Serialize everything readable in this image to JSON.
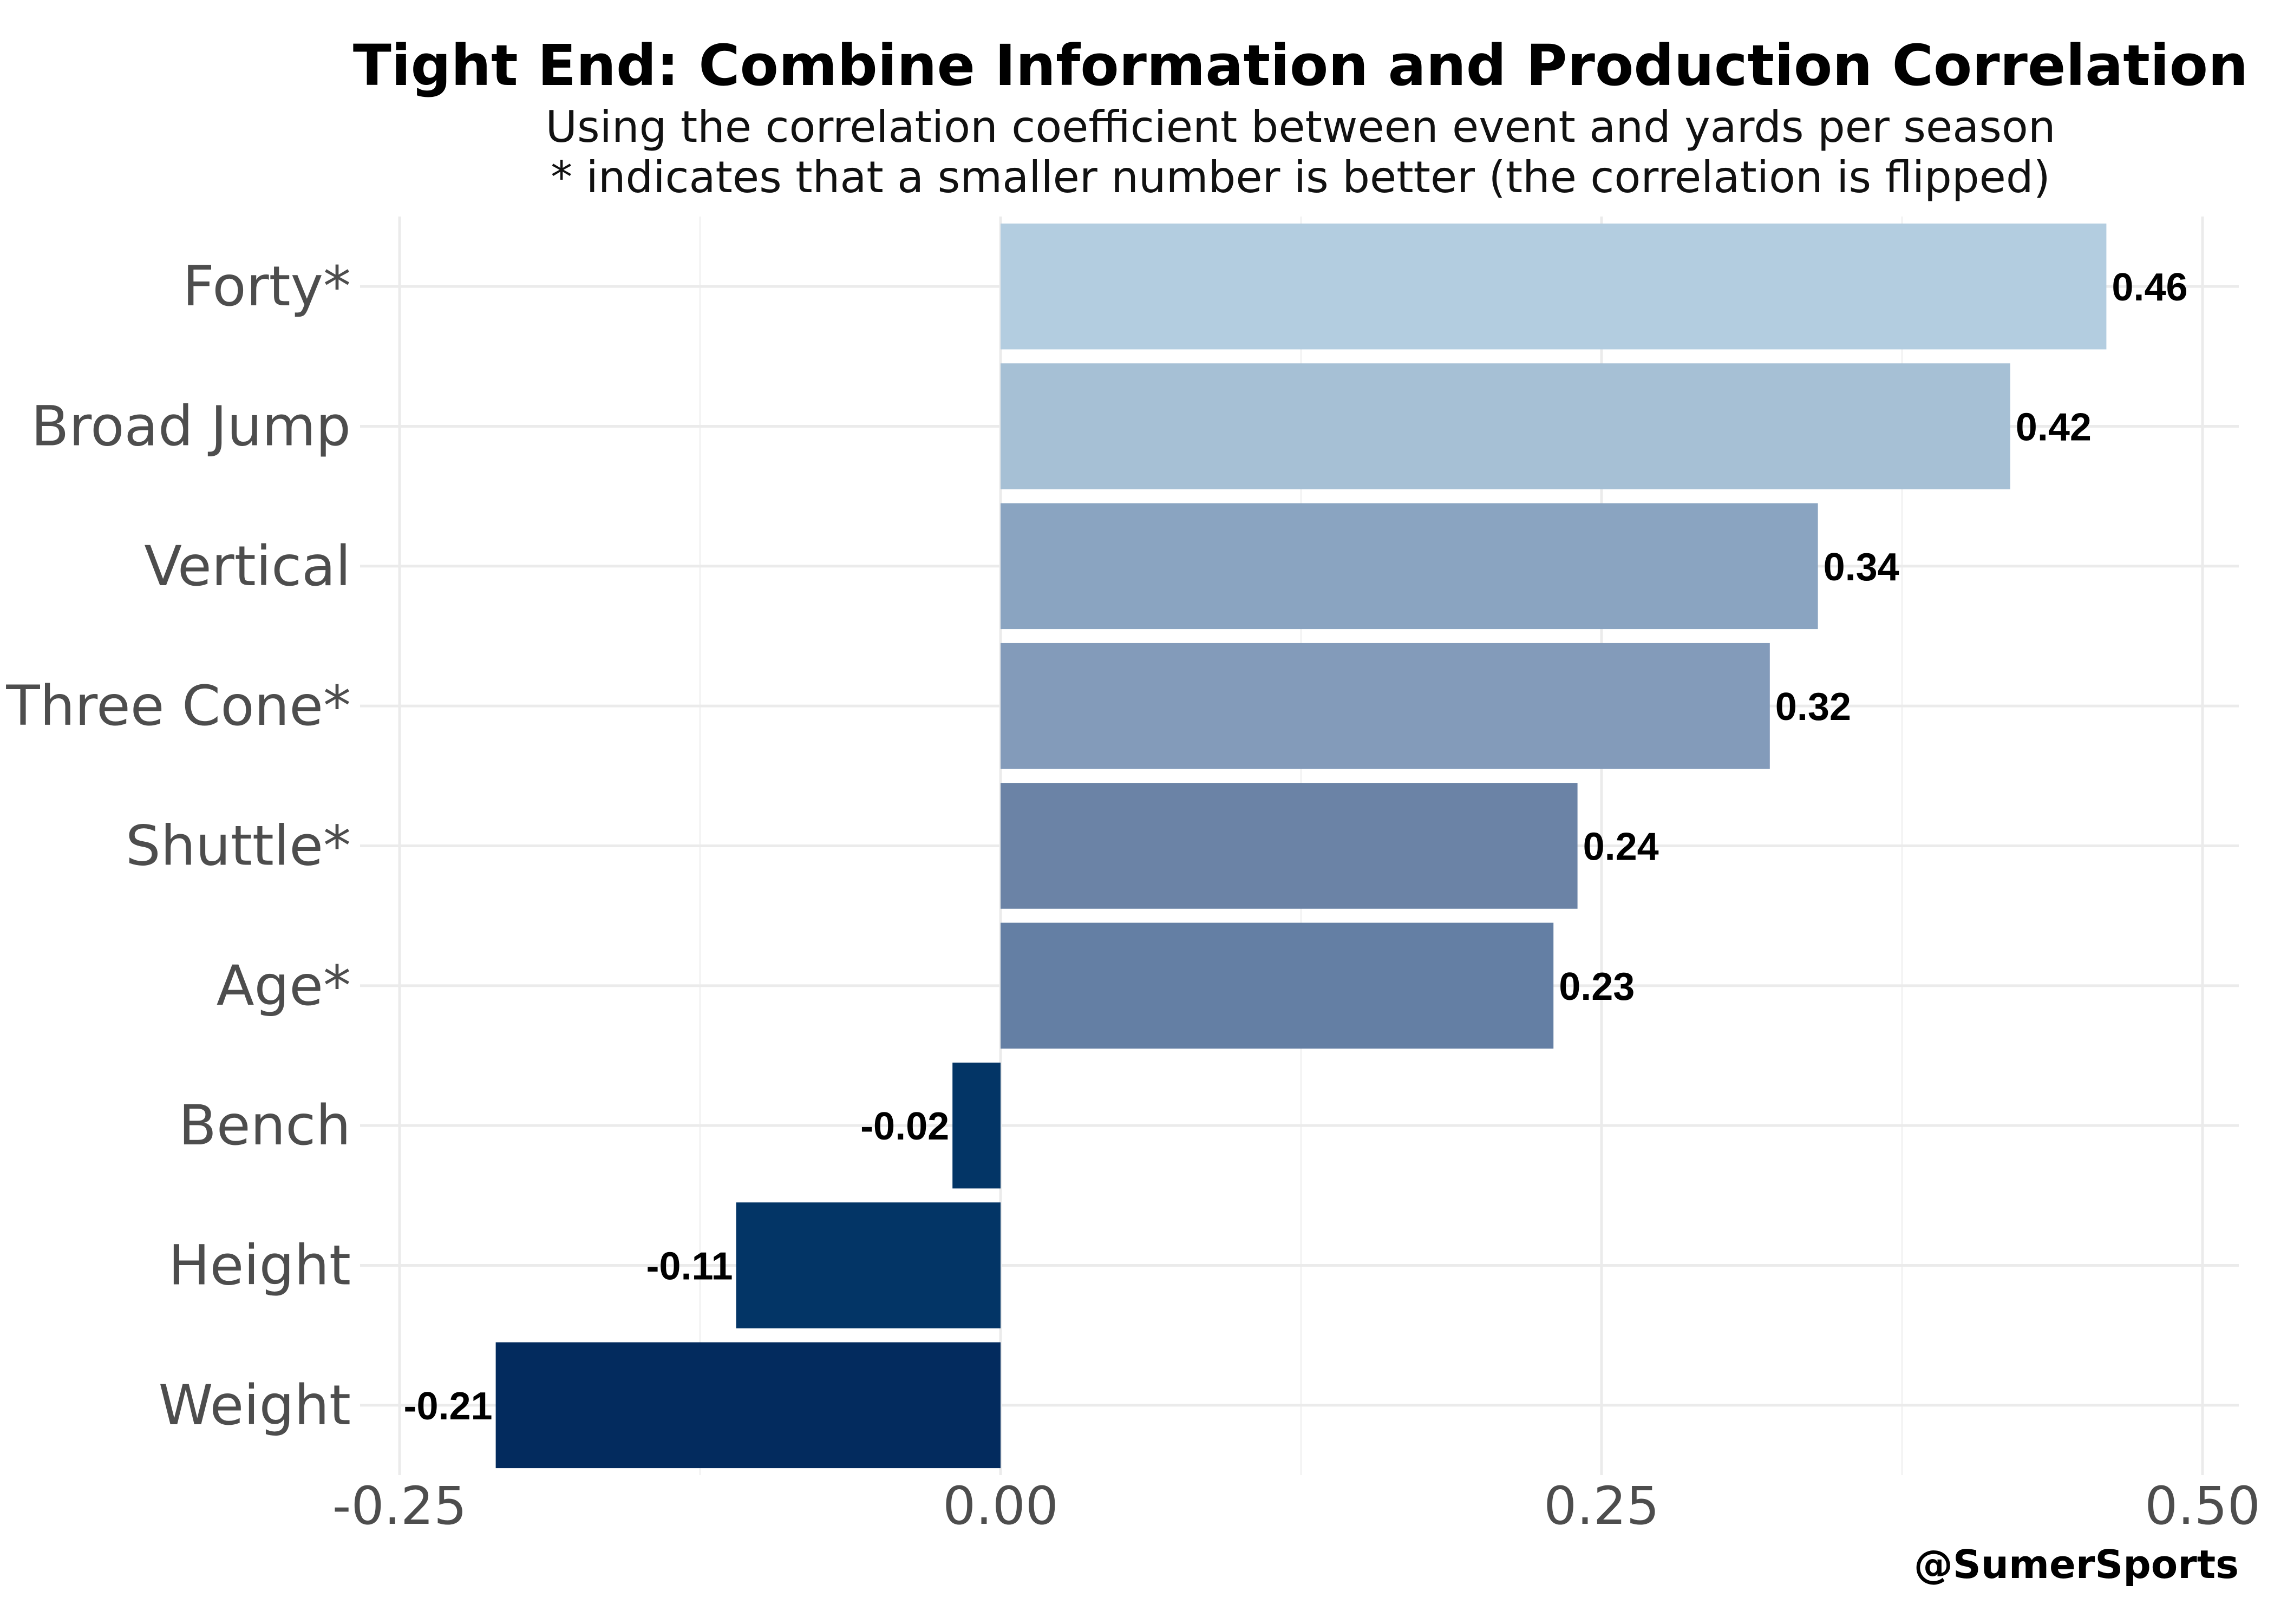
{
  "chart_data": {
    "type": "bar",
    "orientation": "horizontal",
    "title": "Tight End: Combine Information and Production Correlation",
    "subtitle_lines": [
      "Using the correlation coefficient between event and yards per season",
      "* indicates that a smaller number is better (the correlation is flipped)"
    ],
    "caption": "@SumerSports",
    "categories": [
      "Forty*",
      "Broad Jump",
      "Vertical",
      "Three Cone*",
      "Shuttle*",
      "Age*",
      "Bench",
      "Height",
      "Weight"
    ],
    "values": [
      0.46,
      0.42,
      0.34,
      0.32,
      0.24,
      0.23,
      -0.02,
      -0.11,
      -0.21
    ],
    "value_labels": [
      "0.46",
      "0.42",
      "0.34",
      "0.32",
      "0.24",
      "0.23",
      "-0.02",
      "-0.11",
      "-0.21"
    ],
    "colors": [
      "#b3cde0",
      "#a6c0d5",
      "#8aa4c1",
      "#839bba",
      "#6b83a6",
      "#647fa4",
      "#033566",
      "#033566",
      "#032b5e"
    ],
    "x_ticks": [
      -0.25,
      0.0,
      0.25,
      0.5
    ],
    "x_tick_labels": [
      "-0.25",
      "0.00",
      "0.25",
      "0.50"
    ],
    "xlim": [
      -0.25,
      0.5
    ],
    "grid": true,
    "legend": "none"
  }
}
